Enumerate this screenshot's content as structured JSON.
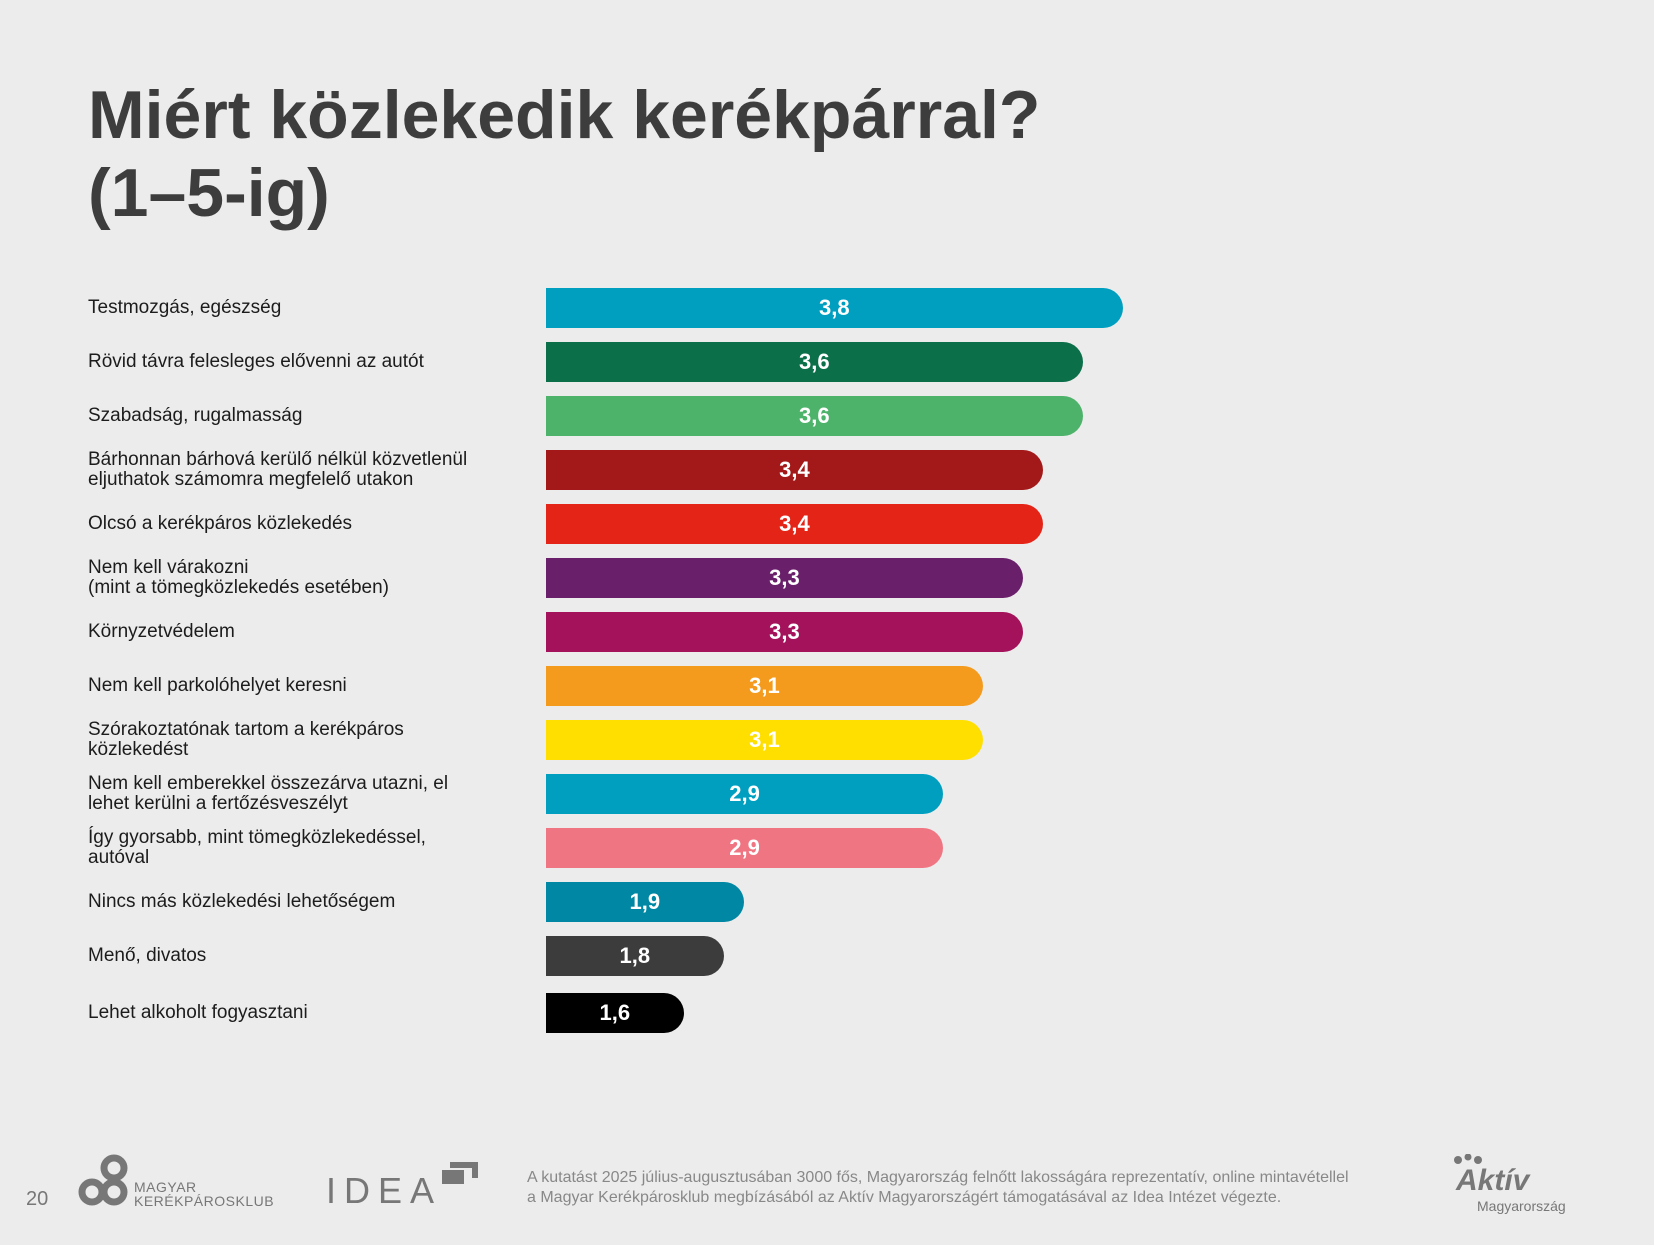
{
  "title_line1": "Miért közlekedik kerékpárral?",
  "title_line2": "(1–5-ig)",
  "chart_data": {
    "type": "bar",
    "orientation": "horizontal",
    "title": "Miért közlekedik kerékpárral? (1–5-ig)",
    "xlabel": "",
    "ylabel": "",
    "xlim": [
      1,
      5
    ],
    "grid": false,
    "categories": [
      "Testmozgás, egészség",
      "Rövid távra felesleges elővenni az autót",
      "Szabadság, rugalmasság",
      "Bárhonnan bárhová kerülő nélkül közvetlenül\neljuthatok számomra megfelelő utakon",
      "Olcsó a kerékpáros közlekedés",
      "Nem kell várakozni\n(mint a tömegközlekedés esetében)",
      "Környzetvédelem",
      "Nem kell parkolóhelyet keresni",
      "Szórakoztatónak tartom a kerékpáros\nközlekedést",
      "Nem kell emberekkel összezárva utazni, el\nlehet kerülni a fertőzésveszélyt",
      "Így gyorsabb, mint tömegközlekedéssel,\nautóval",
      "Nincs más közlekedési lehetőségem",
      "Menő, divatos",
      "Lehet alkoholt fogyasztani"
    ],
    "values": [
      3.8,
      3.6,
      3.6,
      3.4,
      3.4,
      3.3,
      3.3,
      3.1,
      3.1,
      2.9,
      2.9,
      1.9,
      1.8,
      1.6
    ],
    "value_labels": [
      "3,8",
      "3,6",
      "3,6",
      "3,4",
      "3,4",
      "3,3",
      "3,3",
      "3,1",
      "3,1",
      "2,9",
      "2,9",
      "1,9",
      "1,8",
      "1,6"
    ],
    "colors": [
      "#009fc0",
      "#0b6f4a",
      "#4db36a",
      "#a31818",
      "#e52418",
      "#6a1f6b",
      "#a3125a",
      "#f49a1c",
      "#ffdf00",
      "#009fc0",
      "#f07583",
      "#0087a3",
      "#3c3c3c",
      "#000000"
    ]
  },
  "footer": {
    "page_number": "20",
    "logo1_line1": "MAGYAR",
    "logo1_line2": "KERÉKPÁROSKLUB",
    "logo2": "IDEA",
    "note_line1": "A kutatást 2025 július-augusztusában 3000 fős, Magyarország felnőtt lakosságára reprezentatív, online mintavétellel",
    "note_line2": "a Magyar Kerékpárosklub megbízásából az Aktív Magyarországért támogatásával az Idea Intézet végezte.",
    "logo3_line1": "Aktív",
    "logo3_line2": "Magyarország"
  }
}
